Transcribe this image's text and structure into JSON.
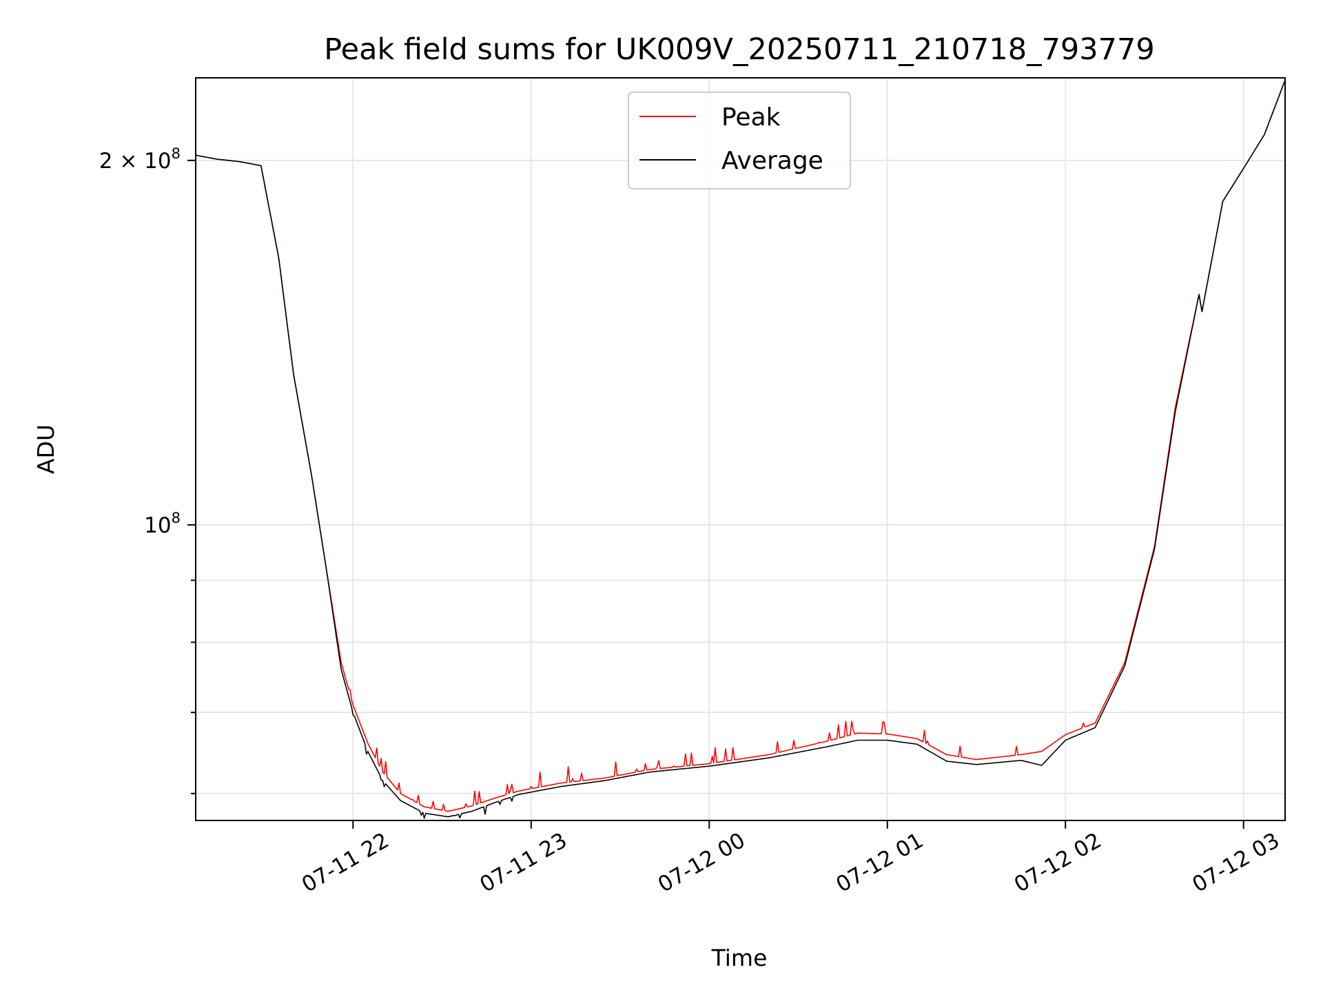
{
  "chart_data": {
    "type": "line",
    "title": "Peak field sums for UK009V_20250711_210718_793779",
    "xlabel": "Time",
    "ylabel": "ADU",
    "yscale": "log",
    "grid": true,
    "legend_placement": "top-center",
    "xlim": [
      "2025-07-11 21:07",
      "2025-07-12 03:14"
    ],
    "ylim": [
      57000000,
      234000000
    ],
    "x_ticks": [
      "07-11 22",
      "07-11 23",
      "07-12 00",
      "07-12 01",
      "07-12 02",
      "07-12 03"
    ],
    "y_ticks": [
      {
        "value": 100000000,
        "base": "10",
        "exp": "8",
        "prefix": ""
      },
      {
        "value": 200000000,
        "base": "10",
        "exp": "8",
        "prefix": "2 × "
      }
    ],
    "y_minor_ticks": [
      60000000,
      70000000,
      80000000,
      90000000
    ],
    "x_anchor": "2025-07-11 21:07",
    "series": [
      {
        "name": "Peak",
        "color": "#ff0000",
        "points": [
          [
            "2025-07-11 21:07",
            202000000
          ],
          [
            "2025-07-11 21:14",
            200500000
          ],
          [
            "2025-07-11 21:22",
            199500000
          ],
          [
            "2025-07-11 21:29",
            198000000
          ],
          [
            "2025-07-11 21:35",
            166000000
          ],
          [
            "2025-07-11 21:40",
            133000000
          ],
          [
            "2025-07-11 21:46",
            110000000
          ],
          [
            "2025-07-11 21:51",
            92000000
          ],
          [
            "2025-07-11 21:56",
            77000000
          ],
          [
            "2025-07-11 22:00",
            71000000
          ],
          [
            "2025-07-11 22:05",
            66000000
          ],
          [
            "2025-07-11 22:10",
            62500000
          ],
          [
            "2025-07-11 22:16",
            60000000
          ],
          [
            "2025-07-11 22:24",
            58500000
          ],
          [
            "2025-07-11 22:32",
            58000000
          ],
          [
            "2025-07-11 22:40",
            58600000
          ],
          [
            "2025-07-11 22:48",
            59500000
          ],
          [
            "2025-07-11 22:56",
            60300000
          ],
          [
            "2025-07-11 23:10",
            61200000
          ],
          [
            "2025-07-11 23:25",
            61800000
          ],
          [
            "2025-07-11 23:40",
            62800000
          ],
          [
            "2025-07-12 00:00",
            63500000
          ],
          [
            "2025-07-12 00:20",
            64600000
          ],
          [
            "2025-07-12 00:40",
            66300000
          ],
          [
            "2025-07-12 00:50",
            67300000
          ],
          [
            "2025-07-12 01:00",
            67200000
          ],
          [
            "2025-07-12 01:10",
            66600000
          ],
          [
            "2025-07-12 01:20",
            64600000
          ],
          [
            "2025-07-12 01:30",
            64000000
          ],
          [
            "2025-07-12 01:45",
            64600000
          ],
          [
            "2025-07-12 01:52",
            65000000
          ],
          [
            "2025-07-12 02:00",
            67100000
          ],
          [
            "2025-07-12 02:10",
            68600000
          ],
          [
            "2025-07-12 02:20",
            77000000
          ],
          [
            "2025-07-12 02:30",
            96000000
          ],
          [
            "2025-07-12 02:37",
            125000000
          ],
          [
            "2025-07-12 02:45",
            155000000
          ],
          [
            "2025-07-12 02:46",
            150000000
          ],
          [
            "2025-07-12 02:53",
            185000000
          ],
          [
            "2025-07-12 03:00",
            197000000
          ],
          [
            "2025-07-12 03:07",
            210000000
          ],
          [
            "2025-07-12 03:14",
            233000000
          ]
        ]
      },
      {
        "name": "Average",
        "color": "#000000",
        "points": [
          [
            "2025-07-11 21:07",
            202000000
          ],
          [
            "2025-07-11 21:14",
            200500000
          ],
          [
            "2025-07-11 21:22",
            199500000
          ],
          [
            "2025-07-11 21:29",
            198000000
          ],
          [
            "2025-07-11 21:35",
            166000000
          ],
          [
            "2025-07-11 21:40",
            133000000
          ],
          [
            "2025-07-11 21:46",
            110000000
          ],
          [
            "2025-07-11 21:51",
            92000000
          ],
          [
            "2025-07-11 21:56",
            76000000
          ],
          [
            "2025-07-11 22:00",
            70000000
          ],
          [
            "2025-07-11 22:05",
            65000000
          ],
          [
            "2025-07-11 22:10",
            61500000
          ],
          [
            "2025-07-11 22:16",
            59200000
          ],
          [
            "2025-07-11 22:24",
            57800000
          ],
          [
            "2025-07-11 22:32",
            57400000
          ],
          [
            "2025-07-11 22:40",
            58000000
          ],
          [
            "2025-07-11 22:48",
            59000000
          ],
          [
            "2025-07-11 22:56",
            59900000
          ],
          [
            "2025-07-11 23:10",
            60800000
          ],
          [
            "2025-07-11 23:25",
            61500000
          ],
          [
            "2025-07-11 23:40",
            62500000
          ],
          [
            "2025-07-12 00:00",
            63200000
          ],
          [
            "2025-07-12 00:20",
            64200000
          ],
          [
            "2025-07-12 00:40",
            65600000
          ],
          [
            "2025-07-12 00:50",
            66400000
          ],
          [
            "2025-07-12 01:00",
            66400000
          ],
          [
            "2025-07-12 01:10",
            65900000
          ],
          [
            "2025-07-12 01:20",
            63800000
          ],
          [
            "2025-07-12 01:30",
            63400000
          ],
          [
            "2025-07-12 01:45",
            63900000
          ],
          [
            "2025-07-12 01:52",
            63300000
          ],
          [
            "2025-07-12 02:00",
            66400000
          ],
          [
            "2025-07-12 02:10",
            68000000
          ],
          [
            "2025-07-12 02:20",
            76500000
          ],
          [
            "2025-07-12 02:30",
            95500000
          ],
          [
            "2025-07-12 02:37",
            124000000
          ],
          [
            "2025-07-12 02:45",
            155000000
          ],
          [
            "2025-07-12 02:46",
            150000000
          ],
          [
            "2025-07-12 02:53",
            185000000
          ],
          [
            "2025-07-12 03:00",
            197000000
          ],
          [
            "2025-07-12 03:07",
            210000000
          ],
          [
            "2025-07-12 03:14",
            233000000
          ]
        ]
      }
    ]
  }
}
